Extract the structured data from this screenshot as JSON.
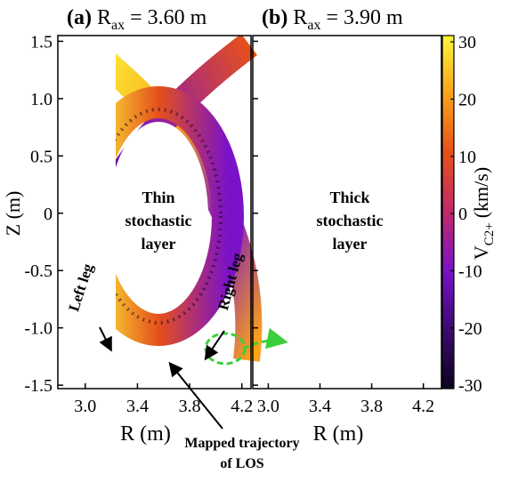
{
  "chart_data": [
    {
      "type": "map",
      "panel_label": "(a)",
      "title": "R",
      "title_sub": "ax",
      "title_rest": "= 3.60 m",
      "xlabel": "R (m)",
      "ylabel": "Z (m)",
      "xlim": [
        2.79,
        4.27
      ],
      "ylim": [
        -1.53,
        1.55
      ],
      "xticks": [
        {
          "value": 3.0,
          "label": "3.0"
        },
        3.4,
        3.8,
        4.2
      ],
      "yticks": [
        1.5,
        {
          "value": 1.0,
          "label": "1.0"
        },
        0.5,
        0,
        -0.5,
        {
          "value": -1.0,
          "label": "-1.0"
        },
        -1.5
      ],
      "annotation": [
        "Thin",
        "stochastic",
        "layer"
      ],
      "left_leg": "Left leg",
      "right_leg": "Right leg"
    },
    {
      "type": "map",
      "panel_label": "(b)",
      "title": "R",
      "title_sub": "ax",
      "title_rest": "= 3.90 m",
      "xlabel": "R (m)",
      "xlim": [
        2.88,
        4.34
      ],
      "ylim": [
        -1.53,
        1.55
      ],
      "xticks": [
        {
          "value": 3.0,
          "label": "3.0"
        },
        3.4,
        3.8,
        4.2
      ],
      "yticks": [
        1.5,
        1,
        0.5,
        0,
        -0.5,
        -1,
        -1.5
      ],
      "annotation": [
        "Thick",
        "stochastic",
        "layer"
      ]
    }
  ],
  "colorbar": {
    "label": "V",
    "label_sub": "C2+",
    "label_rest": "(km/s)",
    "lim": [
      -30.6,
      31.1
    ],
    "ticks": [
      30,
      20,
      10,
      0,
      -10,
      -20,
      -30
    ],
    "colors": [
      "#0d0221",
      "#3b0a6e",
      "#7a12c8",
      "#c02a6a",
      "#e6501b",
      "#f9a21a",
      "#fdf53a"
    ]
  },
  "footnote": [
    "Mapped trajectory",
    "of LOS"
  ]
}
